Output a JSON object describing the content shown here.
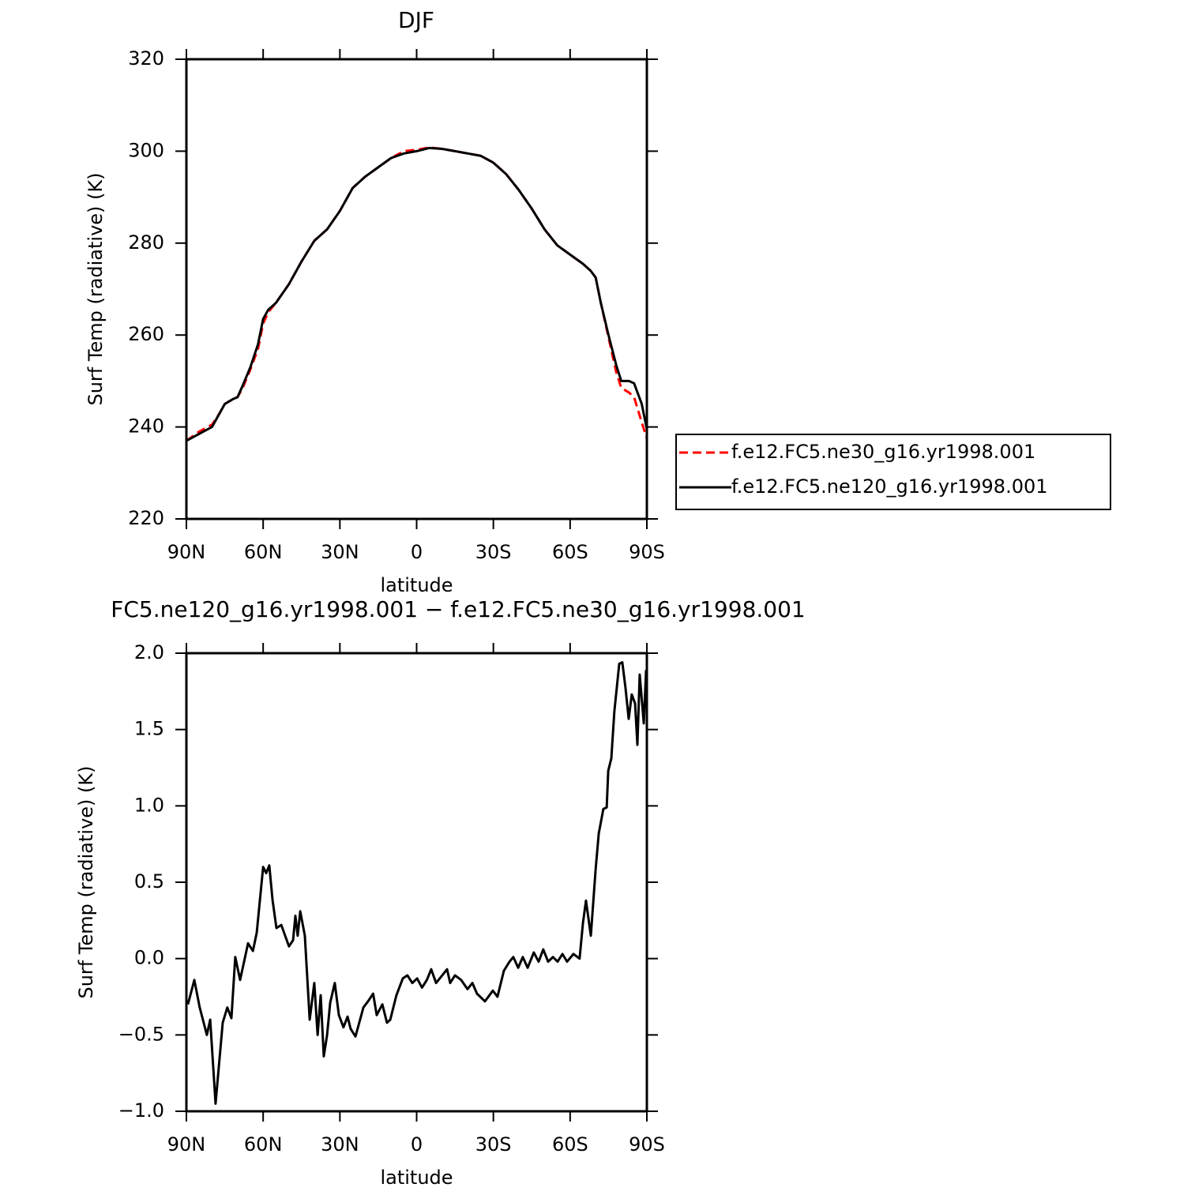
{
  "chart_data": [
    {
      "type": "line",
      "title": "DJF",
      "xlabel": "latitude",
      "ylabel": "Surf Temp (radiative) (K)",
      "xlim": [
        90,
        -90
      ],
      "xticks": [
        {
          "value": 90,
          "label": "90N"
        },
        {
          "value": 60,
          "label": "60N"
        },
        {
          "value": 30,
          "label": "30N"
        },
        0,
        {
          "value": -30,
          "label": "30S"
        },
        {
          "value": -60,
          "label": "60S"
        },
        {
          "value": -90,
          "label": "90S"
        }
      ],
      "ylim": [
        220,
        320
      ],
      "yticks": [
        220,
        240,
        260,
        280,
        300,
        320
      ],
      "legend": "right",
      "x": [
        90,
        85,
        80,
        77,
        75,
        72,
        70,
        68,
        65,
        62,
        60,
        58,
        55,
        50,
        45,
        40,
        35,
        30,
        25,
        20,
        15,
        10,
        5,
        0,
        -5,
        -10,
        -15,
        -20,
        -25,
        -30,
        -35,
        -40,
        -45,
        -50,
        -55,
        -60,
        -65,
        -68,
        -70,
        -72,
        -75,
        -78,
        -80,
        -83,
        -85,
        -88,
        -90
      ],
      "series": [
        {
          "name": "f.e12.FC5.ne30_g16.yr1998.001",
          "color": "#ff0000",
          "dash": true,
          "values": [
            237,
            239,
            240.5,
            243,
            245,
            246,
            246.5,
            248.5,
            252.5,
            257,
            262.5,
            265,
            267,
            271,
            276,
            280.5,
            283,
            287,
            292,
            294.5,
            296.5,
            298.5,
            300,
            300.3,
            300.8,
            300.5,
            300,
            299.5,
            299,
            297.5,
            295,
            291.5,
            287.5,
            283,
            279.5,
            277.5,
            275.5,
            274,
            272.5,
            267,
            259.5,
            252,
            248.5,
            247.5,
            246.5,
            241,
            237.5
          ]
        },
        {
          "name": "f.e12.FC5.ne120_g16.yr1998.001",
          "color": "#000000",
          "dash": false,
          "values": [
            237,
            238.5,
            240,
            243,
            245,
            246,
            246.5,
            249,
            253,
            258,
            263.5,
            265.5,
            267,
            271,
            276,
            280.5,
            283,
            287,
            292,
            294.5,
            296.5,
            298.5,
            299.5,
            300,
            300.7,
            300.5,
            300,
            299.5,
            299,
            297.5,
            295,
            291.5,
            287.5,
            283,
            279.5,
            277.5,
            275.5,
            274,
            272.5,
            267,
            260,
            253.5,
            250,
            250,
            249.5,
            245,
            239.5
          ]
        }
      ]
    },
    {
      "type": "line",
      "title": "FC5.ne120_g16.yr1998.001 − f.e12.FC5.ne30_g16.yr1998.001",
      "xlabel": "latitude",
      "ylabel": "Surf Temp (radiative) (K)",
      "xlim": [
        90,
        -90
      ],
      "xticks": [
        {
          "value": 90,
          "label": "90N"
        },
        {
          "value": 60,
          "label": "60N"
        },
        {
          "value": 30,
          "label": "30N"
        },
        0,
        {
          "value": -30,
          "label": "30S"
        },
        {
          "value": -60,
          "label": "60S"
        },
        {
          "value": -90,
          "label": "90S"
        }
      ],
      "ylim": [
        -1.0,
        2.0
      ],
      "yticks": [
        {
          "value": -1.0,
          "label": "−1.0"
        },
        {
          "value": -0.5,
          "label": "−0.5"
        },
        {
          "value": 0,
          "label": "0.0"
        },
        {
          "value": 0.5,
          "label": "0.5"
        },
        {
          "value": 1.0,
          "label": "1.0"
        },
        {
          "value": 1.5,
          "label": "1.5"
        },
        {
          "value": 2.0,
          "label": "2.0"
        }
      ],
      "x": [
        89.4,
        86.9,
        84.8,
        82,
        80.7,
        78.6,
        75.8,
        74,
        72.4,
        70.9,
        69,
        65.9,
        64,
        62.5,
        60,
        58.8,
        57.6,
        56.3,
        54.8,
        52.9,
        49.9,
        48.3,
        47.4,
        46.5,
        45.5,
        43.7,
        41.8,
        40,
        38.7,
        37.5,
        36.3,
        35,
        33.8,
        32,
        30.4,
        28.6,
        27,
        25.8,
        23.9,
        20.8,
        19,
        17,
        15.6,
        13.4,
        11.6,
        10.3,
        7.9,
        5.4,
        3.6,
        1.7,
        -0.2,
        -2.1,
        -4,
        -5.7,
        -7.6,
        -10,
        -11.9,
        -13.1,
        -15,
        -17.4,
        -19.9,
        -21.8,
        -23.6,
        -26.7,
        -29.8,
        -31.6,
        -34.1,
        -36.3,
        -37.8,
        -39.7,
        -41.5,
        -43.4,
        -45.8,
        -47.7,
        -49.5,
        -51.4,
        -53.3,
        -55.1,
        -57,
        -58.8,
        -61.3,
        -63.7,
        -65,
        -66.2,
        -68.1,
        -70,
        -71.2,
        -73,
        -74.3,
        -74.9,
        -76.1,
        -77.3,
        -79.2,
        -80.4,
        -81.6,
        -82.9,
        -84.1,
        -85.4,
        -86.3,
        -87.2,
        -88.8,
        -89.7
      ],
      "series": [
        {
          "color": "#000000",
          "values": [
            -0.3,
            -0.14,
            -0.32,
            -0.5,
            -0.4,
            -0.95,
            -0.42,
            -0.32,
            -0.39,
            0.01,
            -0.14,
            0.1,
            0.05,
            0.17,
            0.6,
            0.56,
            0.61,
            0.38,
            0.2,
            0.22,
            0.08,
            0.12,
            0.28,
            0.15,
            0.31,
            0.15,
            -0.4,
            -0.16,
            -0.5,
            -0.24,
            -0.64,
            -0.5,
            -0.29,
            -0.16,
            -0.37,
            -0.45,
            -0.38,
            -0.46,
            -0.51,
            -0.32,
            -0.28,
            -0.23,
            -0.37,
            -0.3,
            -0.42,
            -0.4,
            -0.24,
            -0.13,
            -0.11,
            -0.16,
            -0.13,
            -0.19,
            -0.14,
            -0.07,
            -0.16,
            -0.11,
            -0.07,
            -0.16,
            -0.11,
            -0.14,
            -0.2,
            -0.16,
            -0.23,
            -0.28,
            -0.21,
            -0.25,
            -0.08,
            -0.02,
            0.01,
            -0.06,
            0.01,
            -0.06,
            0.04,
            -0.02,
            0.06,
            -0.02,
            0.01,
            -0.02,
            0.03,
            -0.02,
            0.03,
            0,
            0.23,
            0.38,
            0.15,
            0.59,
            0.82,
            0.98,
            0.99,
            1.23,
            1.31,
            1.62,
            1.93,
            1.94,
            1.78,
            1.57,
            1.73,
            1.67,
            1.4,
            1.86,
            1.54,
            1.89
          ]
        }
      ]
    }
  ]
}
